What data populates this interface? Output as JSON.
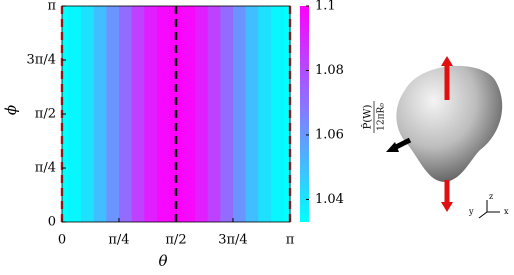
{
  "chart_data": {
    "type": "heatmap",
    "xlabel": "θ",
    "ylabel": "ϕ",
    "colorbar_label_numerator": "P̂(W)",
    "colorbar_label_denominator": "12πR₀",
    "x": [
      0,
      0.175,
      0.349,
      0.524,
      0.698,
      0.873,
      1.047,
      1.222,
      1.396,
      1.571,
      1.745,
      1.92,
      2.094,
      2.269,
      2.443,
      2.618,
      2.793,
      2.967,
      3.142
    ],
    "values": [
      1.033,
      1.035,
      1.041,
      1.05,
      1.061,
      1.072,
      1.083,
      1.092,
      1.098,
      1.1,
      1.098,
      1.092,
      1.083,
      1.072,
      1.061,
      1.05,
      1.041,
      1.035,
      1.033
    ],
    "xlim": [
      0,
      3.142
    ],
    "ylim": [
      0,
      3.142
    ],
    "xticks": [
      0,
      {
        "value": 0.785,
        "label": "π/4"
      },
      {
        "value": 1.571,
        "label": "π/2"
      },
      {
        "value": 2.356,
        "label": "3π/4"
      },
      {
        "value": 3.142,
        "label": "π"
      }
    ],
    "yticks": [
      0,
      {
        "value": 0.785,
        "label": "π/4"
      },
      {
        "value": 1.571,
        "label": "π/2"
      },
      {
        "value": 2.356,
        "label": "3π/4"
      },
      {
        "value": 3.142,
        "label": "π"
      }
    ],
    "clim": [
      1.033,
      1.1
    ],
    "cticks": [
      1.04,
      1.06,
      1.08,
      1.1
    ],
    "colormap": [
      "#00ffff",
      "#ff00ff"
    ],
    "reference_lines": [
      {
        "x": 0,
        "color": "#e03030"
      },
      {
        "x": 1.571,
        "color": "#000000"
      },
      {
        "x": 3.142,
        "color": "#e03030"
      }
    ],
    "inset_axes": {
      "x": "x",
      "y": "y",
      "z": "z"
    }
  }
}
